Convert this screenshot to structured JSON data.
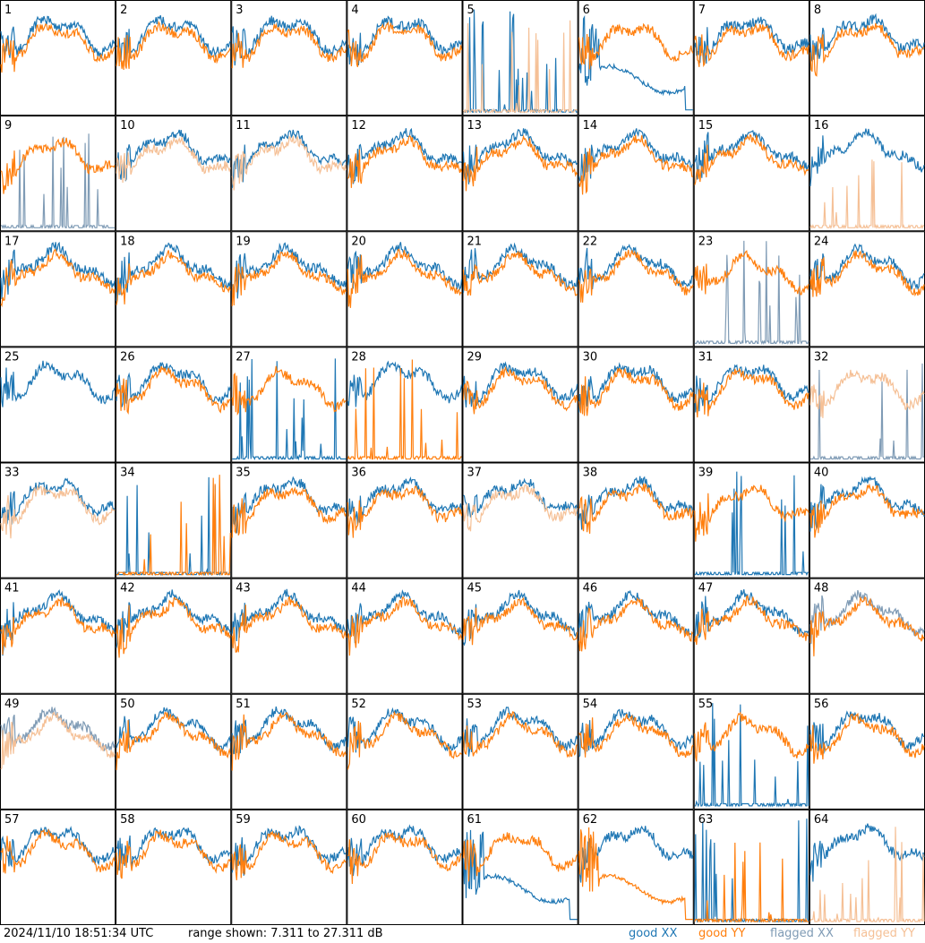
{
  "chart_data": {
    "type": "line",
    "panel_labels": [
      "1",
      "2",
      "3",
      "4",
      "5",
      "6",
      "7",
      "8",
      "9",
      "10",
      "11",
      "12",
      "13",
      "14",
      "15",
      "16",
      "17",
      "18",
      "19",
      "20",
      "21",
      "22",
      "23",
      "24",
      "25",
      "26",
      "27",
      "28",
      "29",
      "30",
      "31",
      "32",
      "33",
      "34",
      "35",
      "36",
      "37",
      "38",
      "39",
      "40",
      "41",
      "42",
      "43",
      "44",
      "45",
      "46",
      "47",
      "48",
      "49",
      "50",
      "51",
      "52",
      "53",
      "54",
      "55",
      "56",
      "57",
      "58",
      "59",
      "60",
      "61",
      "62",
      "63",
      "64"
    ],
    "y_range_db": [
      7.311,
      27.311
    ],
    "series_legend": [
      {
        "name": "good XX",
        "color": "#1f77b4"
      },
      {
        "name": "good YY",
        "color": "#ff7f0e"
      },
      {
        "name": "flagged XX",
        "color": "#7f9bb5"
      },
      {
        "name": "flagged YY",
        "color": "#f5c096"
      }
    ],
    "panel_state": {
      "xx_flagged": [
        9,
        23,
        32,
        48,
        49
      ],
      "yy_flagged": [
        5,
        10,
        11,
        16,
        32,
        33,
        37,
        49,
        64
      ],
      "xx_broken": [
        5,
        9,
        23,
        27,
        32,
        34,
        39,
        55,
        63
      ],
      "yy_broken": [
        5,
        16,
        28,
        34,
        63,
        64
      ],
      "xx_low": [
        6,
        27,
        61
      ],
      "yy_low": [
        62
      ],
      "yy_hidden": [
        25
      ]
    }
  },
  "footer": {
    "timestamp": "2024/11/10 18:51:34 UTC",
    "range_text": "range shown: 7.311 to 27.311 dB"
  }
}
